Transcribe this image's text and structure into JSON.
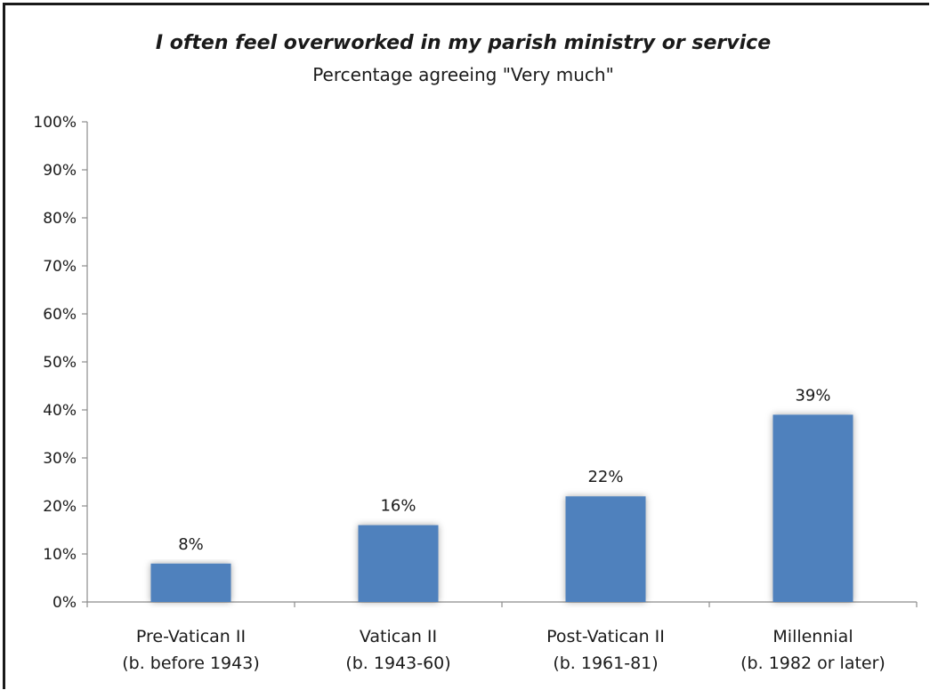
{
  "chart_data": {
    "type": "bar",
    "title": "I often feel overworked in my parish ministry or service",
    "subtitle": "Percentage agreeing \"Very much\"",
    "categories": [
      [
        "Pre-Vatican II",
        "(b. before 1943)"
      ],
      [
        "Vatican II",
        "(b. 1943-60)"
      ],
      [
        "Post-Vatican II",
        "(b. 1961-81)"
      ],
      [
        "Millennial",
        "(b. 1982 or later)"
      ]
    ],
    "values": [
      8,
      16,
      22,
      39
    ],
    "data_labels": [
      "8%",
      "16%",
      "22%",
      "39%"
    ],
    "yticks": [
      "0%",
      "10%",
      "20%",
      "30%",
      "40%",
      "50%",
      "60%",
      "70%",
      "80%",
      "90%",
      "100%"
    ],
    "ylim": [
      0,
      100
    ],
    "grid": false,
    "legend": "none",
    "bar_color": "#4f81bd"
  }
}
